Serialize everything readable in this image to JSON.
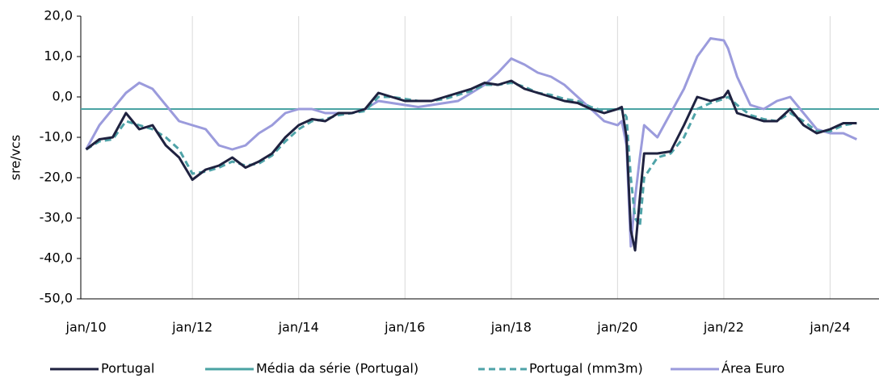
{
  "chart_data": {
    "type": "line",
    "y_label": "sre/vcs",
    "x": [
      2010,
      2010.25,
      2010.5,
      2010.75,
      2011,
      2011.25,
      2011.5,
      2011.75,
      2012,
      2012.25,
      2012.5,
      2012.75,
      2013,
      2013.25,
      2013.5,
      2013.75,
      2014,
      2014.25,
      2014.5,
      2014.75,
      2015,
      2015.25,
      2015.5,
      2015.75,
      2016,
      2016.25,
      2016.5,
      2016.75,
      2017,
      2017.25,
      2017.5,
      2017.75,
      2018,
      2018.25,
      2018.5,
      2018.75,
      2019,
      2019.25,
      2019.5,
      2019.75,
      2020,
      2020.08,
      2020.17,
      2020.25,
      2020.33,
      2020.42,
      2020.5,
      2020.75,
      2021,
      2021.25,
      2021.5,
      2021.75,
      2022,
      2022.08,
      2022.25,
      2022.5,
      2022.75,
      2023,
      2023.25,
      2023.5,
      2023.75,
      2024,
      2024.25,
      2024.5
    ],
    "series": [
      {
        "name": "Portugal",
        "color": "#1f2240",
        "dash": false,
        "values": [
          -13,
          -10.5,
          -10,
          -4,
          -8,
          -7,
          -12,
          -15,
          -20.5,
          -18,
          -17,
          -15,
          -17.5,
          -16,
          -14,
          -10,
          -7,
          -5.5,
          -6,
          -4,
          -4,
          -3,
          1,
          0,
          -1,
          -1,
          -1,
          0,
          1,
          2,
          3.5,
          3,
          4,
          2,
          1,
          0,
          -1,
          -1.5,
          -3,
          -4,
          -3,
          -2.5,
          -10,
          -33,
          -38,
          -25,
          -14,
          -14,
          -13.5,
          -7,
          0,
          -1,
          0,
          1.5,
          -4,
          -5,
          -6,
          -6,
          -3,
          -7,
          -9,
          -8,
          -6.5,
          -6.5
        ]
      },
      {
        "name": "Portugal (mm3m)",
        "color": "#4fa3a8",
        "dash": true,
        "values": [
          -13,
          -11,
          -10.5,
          -6,
          -7,
          -8,
          -10,
          -13,
          -19,
          -18.5,
          -17.5,
          -16,
          -17,
          -16.5,
          -14.5,
          -11,
          -8,
          -6,
          -5.5,
          -4.5,
          -4,
          -3.5,
          0,
          0,
          -0.5,
          -1,
          -1,
          -0.5,
          0.5,
          1.5,
          3,
          3,
          3.5,
          2.5,
          1,
          0.5,
          -0.5,
          -1,
          -2.5,
          -3.5,
          -3,
          -3,
          -5,
          -20,
          -30,
          -32,
          -20,
          -15,
          -14,
          -10,
          -3,
          -1.5,
          -0.5,
          0,
          -2,
          -4.5,
          -5.5,
          -6,
          -4,
          -6,
          -8.5,
          -8.5,
          -7,
          -6.5
        ]
      },
      {
        "name": "Área Euro",
        "color": "#9b9bdc",
        "dash": false,
        "values": [
          -13,
          -7,
          -3,
          1,
          3.5,
          2,
          -2,
          -6,
          -7,
          -8,
          -12,
          -13,
          -12,
          -9,
          -7,
          -4,
          -3,
          -3,
          -4,
          -4,
          -4,
          -3,
          -1,
          -1.5,
          -2,
          -2.5,
          -2,
          -1.5,
          -1,
          1,
          3,
          6,
          9.5,
          8,
          6,
          5,
          3,
          0,
          -3,
          -6,
          -7,
          -6,
          -12,
          -37,
          -25,
          -15,
          -7,
          -10,
          -4,
          2,
          10,
          14.5,
          14,
          12,
          5,
          -2,
          -3,
          -1,
          0,
          -4,
          -8,
          -9,
          -9,
          -10.5
        ]
      }
    ],
    "reference_line": {
      "name": "Média da série (Portugal)",
      "value": -3,
      "color": "#4aa3a3"
    },
    "xlim": [
      2009.9,
      2024.92
    ],
    "xticks": [
      {
        "value": 2010,
        "label": "jan/10"
      },
      {
        "value": 2012,
        "label": "jan/12"
      },
      {
        "value": 2014,
        "label": "jan/14"
      },
      {
        "value": 2016,
        "label": "jan/16"
      },
      {
        "value": 2018,
        "label": "jan/18"
      },
      {
        "value": 2020,
        "label": "jan/20"
      },
      {
        "value": 2022,
        "label": "jan/22"
      },
      {
        "value": 2024,
        "label": "jan/24"
      }
    ],
    "ylim": [
      -50,
      20
    ],
    "yticks": [
      {
        "value": -50,
        "label": "-50,0"
      },
      {
        "value": -40,
        "label": "-40,0"
      },
      {
        "value": -30,
        "label": "-30,0"
      },
      {
        "value": -20,
        "label": "-20,0"
      },
      {
        "value": -10,
        "label": "-10,0"
      },
      {
        "value": 0,
        "label": "0,0"
      },
      {
        "value": 10,
        "label": "10,0"
      },
      {
        "value": 20,
        "label": "20,0"
      }
    ],
    "grid": "x"
  }
}
